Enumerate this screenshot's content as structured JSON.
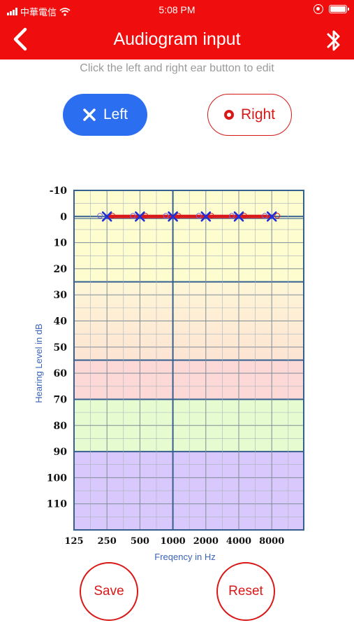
{
  "status_bar": {
    "carrier": "中華電信",
    "time": "5:08 PM"
  },
  "header": {
    "title": "Audiogram input"
  },
  "hint": "Click the left and right ear button to edit",
  "ear_buttons": {
    "left": {
      "label": "Left",
      "selected": true,
      "color": "#2b6ff0"
    },
    "right": {
      "label": "Right",
      "selected": false,
      "color": "#d91818"
    }
  },
  "chart_data": {
    "type": "line",
    "xlabel": "Freqency in Hz",
    "ylabel": "Hearing Level in dB",
    "x_ticks": [
      "125",
      "250",
      "500",
      "1000",
      "2000",
      "4000",
      "8000"
    ],
    "y_ticks": [
      "-10",
      "0",
      "10",
      "20",
      "30",
      "40",
      "50",
      "60",
      "70",
      "80",
      "90",
      "100",
      "110"
    ],
    "ylim": [
      -10,
      120
    ],
    "y_inverted": true,
    "grid": true,
    "bands": [
      {
        "from": -10,
        "to": 25,
        "color": "#fefdd0"
      },
      {
        "from": 25,
        "to": 55,
        "color": "gradient:#fef6d6-#fde4d4"
      },
      {
        "from": 55,
        "to": 70,
        "color": "#fcd8d6"
      },
      {
        "from": 70,
        "to": 90,
        "color": "#e6fbd0"
      },
      {
        "from": 90,
        "to": 120,
        "color": "#d8c8fb"
      }
    ],
    "series": [
      {
        "marker": "X",
        "color": "#1e2fd8",
        "line_color": "#d81a1a",
        "x": [
          "250",
          "500",
          "1000",
          "2000",
          "4000",
          "8000"
        ],
        "values": [
          0,
          0,
          0,
          0,
          0,
          0
        ]
      },
      {
        "marker": "O",
        "color": "#d81a1a",
        "x": [
          "250",
          "500",
          "1000",
          "2000",
          "4000",
          "8000"
        ],
        "values": [
          0,
          0,
          0,
          0,
          0,
          0
        ]
      }
    ]
  },
  "actions": {
    "save": "Save",
    "reset": "Reset"
  }
}
